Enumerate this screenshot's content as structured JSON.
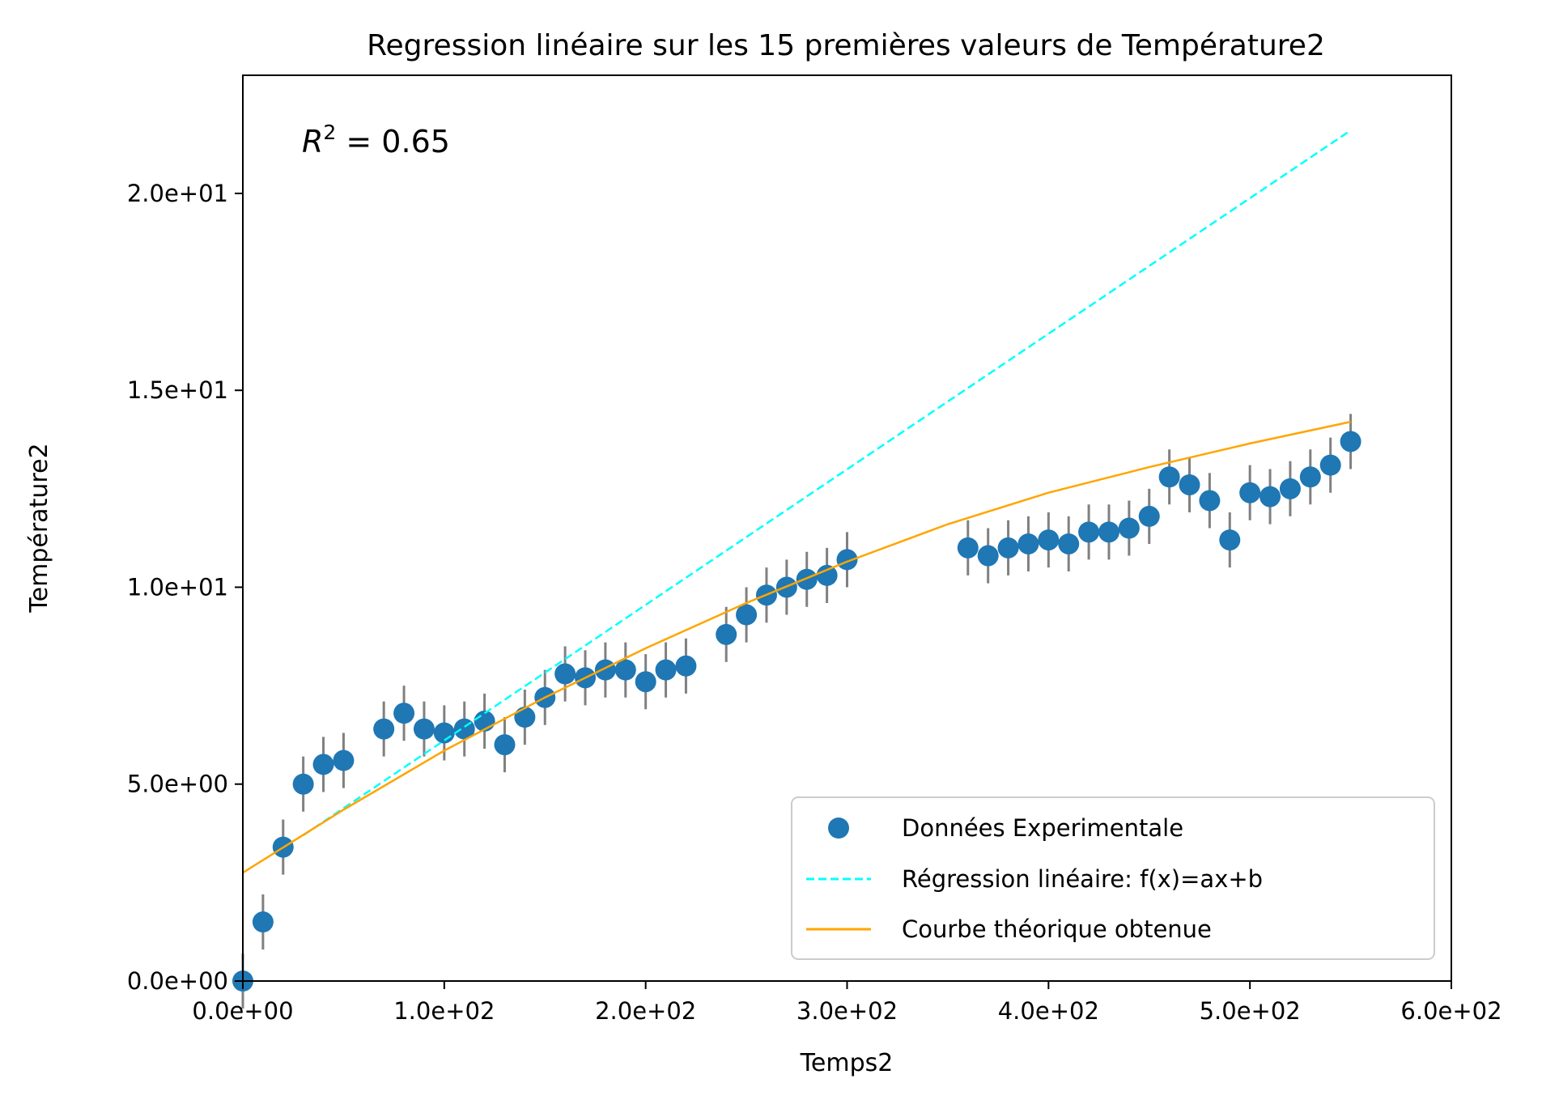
{
  "chart_data": {
    "type": "scatter",
    "title": "Regression linéaire sur les 15 premières valeurs de Température2",
    "xlabel": "Temps2",
    "ylabel": "Température2",
    "xlim": [
      0,
      600
    ],
    "ylim": [
      0,
      23
    ],
    "x_ticks": [
      0,
      100,
      200,
      300,
      400,
      500,
      600
    ],
    "x_tick_labels": [
      "0.0e+00",
      "1.0e+02",
      "2.0e+02",
      "3.0e+02",
      "4.0e+02",
      "5.0e+02",
      "6.0e+02"
    ],
    "y_ticks": [
      0,
      5,
      10,
      15,
      20
    ],
    "y_tick_labels": [
      "0.0e+00",
      "5.0e+00",
      "1.0e+01",
      "1.5e+01",
      "2.0e+01"
    ],
    "grid": false,
    "legend_position": "lower-right",
    "annotation": {
      "base": "R",
      "exponent": "2",
      "text": " = 0.65"
    },
    "series": [
      {
        "name": "Données Experimentale",
        "kind": "scatter",
        "color": "#1f77b4",
        "errorbar_color": "#808080",
        "yerr": 0.7,
        "x": [
          0,
          10,
          20,
          30,
          40,
          50,
          70,
          80,
          90,
          100,
          110,
          120,
          130,
          140,
          150,
          160,
          170,
          180,
          190,
          200,
          210,
          220,
          240,
          250,
          260,
          270,
          280,
          290,
          300,
          360,
          370,
          380,
          390,
          400,
          410,
          420,
          430,
          440,
          450,
          460,
          470,
          480,
          490,
          500,
          510,
          520,
          530,
          540,
          550
        ],
        "y": [
          0.0,
          1.5,
          3.4,
          5.0,
          5.5,
          5.6,
          6.4,
          6.8,
          6.4,
          6.3,
          6.4,
          6.6,
          6.0,
          6.7,
          7.2,
          7.8,
          7.7,
          7.9,
          7.9,
          7.6,
          7.9,
          8.0,
          8.8,
          9.3,
          9.8,
          10.0,
          10.2,
          10.3,
          10.7,
          11.0,
          10.8,
          11.0,
          11.1,
          11.2,
          11.1,
          11.4,
          11.4,
          11.5,
          11.8,
          12.8,
          12.6,
          12.2,
          11.2,
          12.4,
          12.3,
          12.5,
          12.8,
          13.1,
          13.7
        ]
      },
      {
        "name": "Régression linéaire: f(x)=ax+b",
        "kind": "line",
        "style": "dashed",
        "color": "#00ffff",
        "x": [
          30,
          550
        ],
        "y": [
          3.7,
          21.6
        ]
      },
      {
        "name": "Courbe théorique obtenue",
        "kind": "line",
        "style": "solid",
        "color": "#ffa500",
        "x": [
          0,
          50,
          100,
          150,
          200,
          250,
          300,
          350,
          400,
          450,
          500,
          550
        ],
        "y": [
          2.75,
          4.35,
          5.85,
          7.2,
          8.45,
          9.6,
          10.65,
          11.6,
          12.4,
          13.05,
          13.65,
          14.2
        ]
      }
    ]
  }
}
